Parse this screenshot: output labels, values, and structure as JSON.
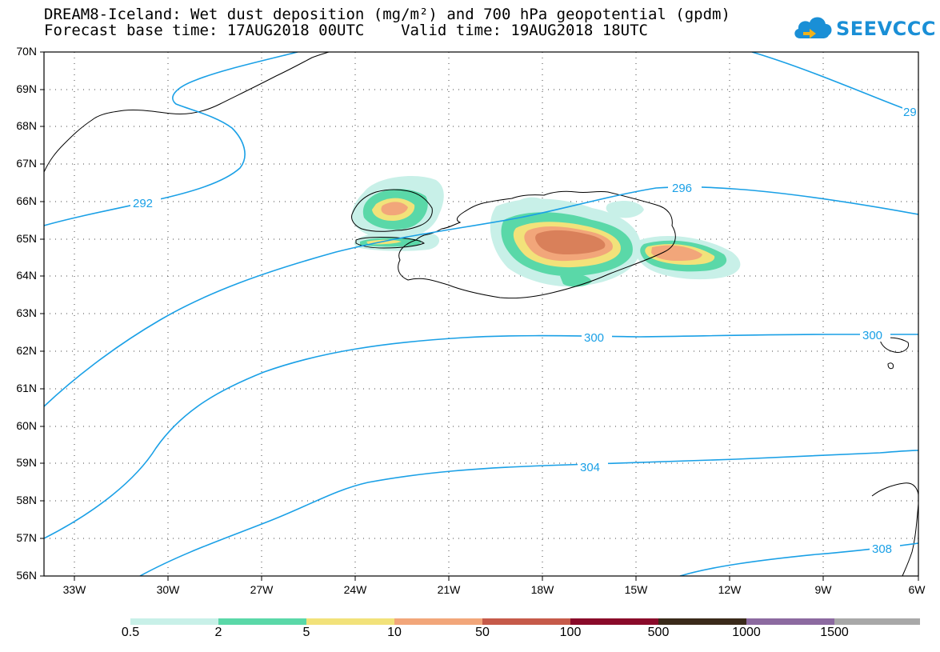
{
  "title": {
    "line1": "DREAM8-Iceland: Wet dust deposition (mg/m²) and 700 hPa geopotential (gpdm)",
    "line2": "Forecast base time: 17AUG2018 00UTC    Valid time: 19AUG2018 18UTC"
  },
  "logo": {
    "text": "SEEVCCC",
    "icon": "cloud-icon",
    "color": "#1a8fd6"
  },
  "axes": {
    "lat_labels": [
      "70N",
      "69N",
      "68N",
      "67N",
      "66N",
      "65N",
      "64N",
      "63N",
      "62N",
      "61N",
      "60N",
      "59N",
      "58N",
      "57N",
      "56N"
    ],
    "lon_labels": [
      "33W",
      "30W",
      "27W",
      "24W",
      "21W",
      "18W",
      "15W",
      "12W",
      "9W",
      "6W"
    ],
    "lat_range": [
      56,
      70
    ],
    "lon_range": [
      -34,
      -6
    ],
    "grid": "dotted"
  },
  "contours": {
    "color": "#1aa0e6",
    "labels": [
      "292",
      "296",
      "300",
      "300",
      "304",
      "308",
      "29"
    ]
  },
  "colorbar": {
    "labels": [
      "0.5",
      "2",
      "5",
      "10",
      "50",
      "100",
      "500",
      "1000",
      "1500"
    ],
    "colors": [
      "#c8f0e8",
      "#5ad8a8",
      "#f2e27a",
      "#f2a67a",
      "#c65a4a",
      "#8a0a2a",
      "#3a2a1a",
      "#8c6aa0",
      "#a8a8a8"
    ]
  }
}
